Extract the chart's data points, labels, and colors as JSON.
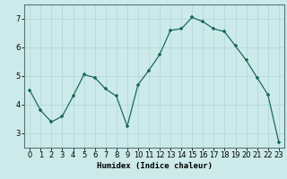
{
  "x": [
    0,
    1,
    2,
    3,
    4,
    5,
    6,
    7,
    8,
    9,
    10,
    11,
    12,
    13,
    14,
    15,
    16,
    17,
    18,
    19,
    20,
    21,
    22,
    23
  ],
  "y": [
    4.5,
    3.8,
    3.4,
    3.6,
    4.3,
    5.05,
    4.95,
    4.55,
    4.3,
    3.25,
    4.7,
    5.2,
    5.75,
    6.6,
    6.65,
    7.05,
    6.9,
    6.65,
    6.55,
    6.05,
    5.55,
    4.95,
    4.35,
    2.7
  ],
  "xlabel": "Humidex (Indice chaleur)",
  "ylim": [
    2.5,
    7.5
  ],
  "xlim": [
    -0.5,
    23.5
  ],
  "yticks": [
    3,
    4,
    5,
    6,
    7
  ],
  "xticks": [
    0,
    1,
    2,
    3,
    4,
    5,
    6,
    7,
    8,
    9,
    10,
    11,
    12,
    13,
    14,
    15,
    16,
    17,
    18,
    19,
    20,
    21,
    22,
    23
  ],
  "line_color": "#1a6b5a",
  "marker_color": "#1a6b5a",
  "bg_color": "#cdeaea",
  "grid_color": "#b0d4d4",
  "xlabel_fontsize": 6.5,
  "tick_fontsize": 6.0
}
